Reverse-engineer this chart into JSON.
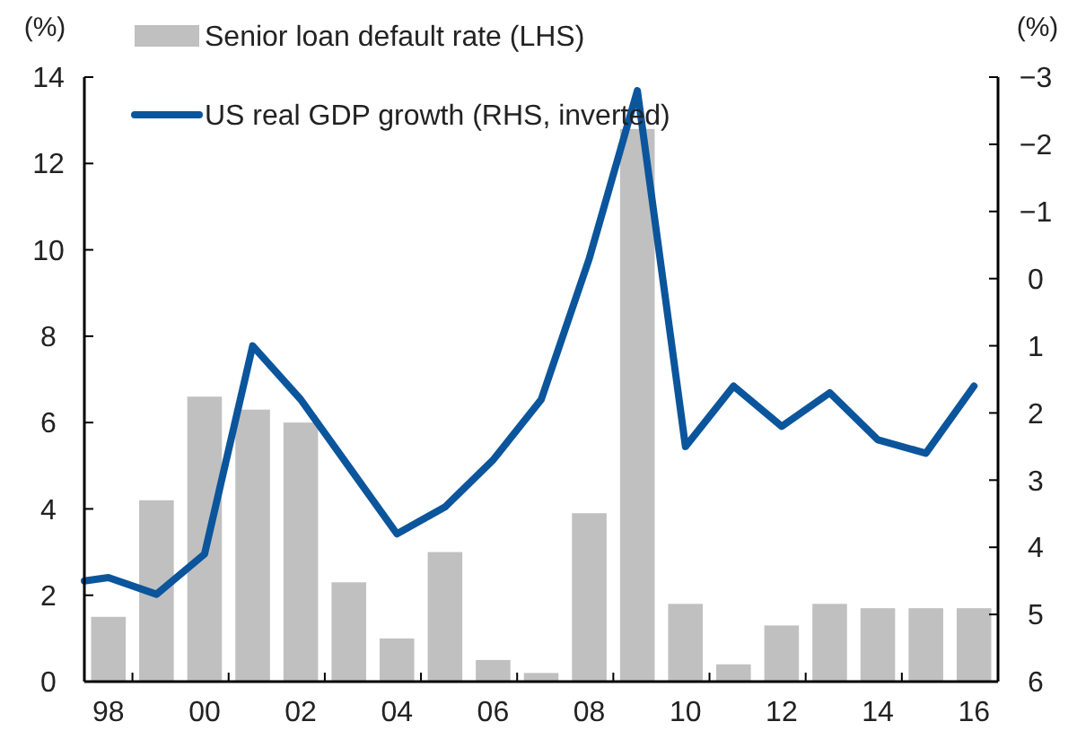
{
  "chart_data": {
    "type": "bar",
    "ylabel": "(%)",
    "y2label": "(%)",
    "xlim": [
      1997.5,
      2016.5
    ],
    "xticks": [
      {
        "value": 1998,
        "label": "98"
      },
      {
        "value": 2000,
        "label": "00"
      },
      {
        "value": 2002,
        "label": "02"
      },
      {
        "value": 2004,
        "label": "04"
      },
      {
        "value": 2006,
        "label": "06"
      },
      {
        "value": 2008,
        "label": "08"
      },
      {
        "value": 2010,
        "label": "10"
      },
      {
        "value": 2012,
        "label": "12"
      },
      {
        "value": 2014,
        "label": "14"
      },
      {
        "value": 2016,
        "label": "16"
      }
    ],
    "ylim": [
      0,
      14
    ],
    "yticks": [
      0,
      2,
      4,
      6,
      8,
      10,
      12,
      14
    ],
    "y2lim": [
      6,
      -3
    ],
    "y2ticks": [
      -3,
      -2,
      -1,
      0,
      1,
      2,
      3,
      4,
      5,
      6
    ],
    "legend": "top left",
    "grid": false,
    "series": [
      {
        "name": "Senior loan default rate (LHS)",
        "color": "#c0c0c0",
        "x": [
          1998,
          1999,
          2000,
          2001,
          2002,
          2003,
          2004,
          2005,
          2006,
          2007,
          2008,
          2009,
          2010,
          2011,
          2012,
          2013,
          2014,
          2015,
          2016
        ],
        "values": [
          1.5,
          4.2,
          6.6,
          6.3,
          6.0,
          2.3,
          1.0,
          3.0,
          0.5,
          0.2,
          3.9,
          12.8,
          1.8,
          0.4,
          1.3,
          1.8,
          1.7,
          1.7,
          1.7
        ]
      },
      {
        "name": "US real GDP growth (RHS, inverted)",
        "type": "line",
        "axis": "y2",
        "color": "#0b559c",
        "x": [
          1997.5,
          1998,
          1999,
          2000,
          2001,
          2002,
          2003,
          2004,
          2005,
          2006,
          2007,
          2008,
          2009,
          2010,
          2011,
          2012,
          2013,
          2014,
          2015,
          2016
        ],
        "values": [
          4.5,
          4.45,
          4.7,
          4.1,
          1.0,
          1.8,
          2.8,
          3.8,
          3.4,
          2.7,
          1.8,
          -0.3,
          -2.8,
          2.5,
          1.6,
          2.2,
          1.7,
          2.4,
          2.6,
          1.6
        ]
      }
    ]
  }
}
